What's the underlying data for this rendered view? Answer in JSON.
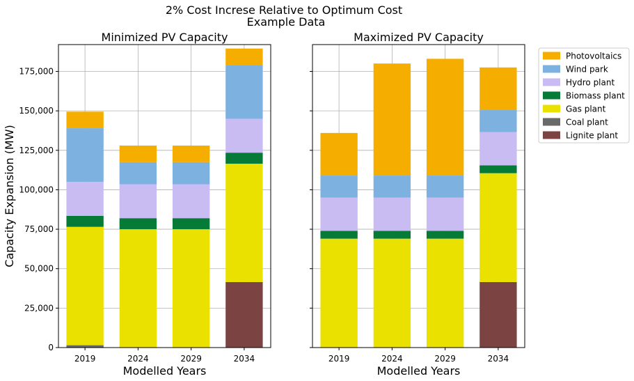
{
  "figure": {
    "suptitle_line1": "2% Cost Increse Relative to Optimum Cost",
    "suptitle_line2": "Example Data"
  },
  "chart_data": [
    {
      "type": "bar",
      "stacked": true,
      "title": "Minimized PV Capacity",
      "xlabel": "Modelled Years",
      "ylabel": "Capacity Expansion (MW)",
      "categories": [
        "2019",
        "2024",
        "2029",
        "2034"
      ],
      "ylim": [
        0,
        192000
      ],
      "yticks": [
        0,
        25000,
        50000,
        75000,
        100000,
        125000,
        150000,
        175000
      ],
      "ytick_labels": [
        "0",
        "25,000",
        "50,000",
        "75,000",
        "100,000",
        "125,000",
        "150,000",
        "175,000"
      ],
      "grid": true,
      "series": [
        {
          "name": "Lignite plant",
          "color": "#7b4443",
          "values": [
            0,
            0,
            0,
            41500
          ]
        },
        {
          "name": "Coal plant",
          "color": "#696969",
          "values": [
            1500,
            0,
            0,
            0
          ]
        },
        {
          "name": "Gas plant",
          "color": "#ebe100",
          "values": [
            75000,
            75000,
            75000,
            75000
          ]
        },
        {
          "name": "Biomass plant",
          "color": "#067a37",
          "values": [
            7000,
            7000,
            7000,
            7000
          ]
        },
        {
          "name": "Hydro plant",
          "color": "#c8bcf2",
          "values": [
            21500,
            21500,
            21500,
            21500
          ]
        },
        {
          "name": "Wind park",
          "color": "#7db2e0",
          "values": [
            34000,
            14000,
            14000,
            34000
          ]
        },
        {
          "name": "Photovoltaics",
          "color": "#f5ae00",
          "values": [
            10500,
            10500,
            10500,
            10500
          ]
        }
      ]
    },
    {
      "type": "bar",
      "stacked": true,
      "title": "Maximized PV Capacity",
      "xlabel": "Modelled Years",
      "ylabel": "",
      "categories": [
        "2019",
        "2024",
        "2029",
        "2034"
      ],
      "ylim": [
        0,
        192000
      ],
      "yticks": [
        0,
        25000,
        50000,
        75000,
        100000,
        125000,
        150000,
        175000
      ],
      "ytick_labels": [],
      "grid": true,
      "series": [
        {
          "name": "Lignite plant",
          "color": "#7b4443",
          "values": [
            0,
            0,
            0,
            41500
          ]
        },
        {
          "name": "Coal plant",
          "color": "#696969",
          "values": [
            0,
            0,
            0,
            0
          ]
        },
        {
          "name": "Gas plant",
          "color": "#ebe100",
          "values": [
            69000,
            69000,
            69000,
            69000
          ]
        },
        {
          "name": "Biomass plant",
          "color": "#067a37",
          "values": [
            5000,
            5000,
            5000,
            5000
          ]
        },
        {
          "name": "Hydro plant",
          "color": "#c8bcf2",
          "values": [
            21000,
            21000,
            21000,
            21000
          ]
        },
        {
          "name": "Wind park",
          "color": "#7db2e0",
          "values": [
            14000,
            14000,
            14000,
            14000
          ]
        },
        {
          "name": "Photovoltaics",
          "color": "#f5ae00",
          "values": [
            27000,
            71000,
            74000,
            27000
          ]
        }
      ]
    }
  ],
  "legend": {
    "placement": "outside-right-top",
    "items": [
      {
        "label": "Photovoltaics",
        "color": "#f5ae00"
      },
      {
        "label": "Wind park",
        "color": "#7db2e0"
      },
      {
        "label": "Hydro plant",
        "color": "#c8bcf2"
      },
      {
        "label": "Biomass plant",
        "color": "#067a37"
      },
      {
        "label": "Gas plant",
        "color": "#ebe100"
      },
      {
        "label": "Coal plant",
        "color": "#696969"
      },
      {
        "label": "Lignite plant",
        "color": "#7b4443"
      }
    ]
  }
}
